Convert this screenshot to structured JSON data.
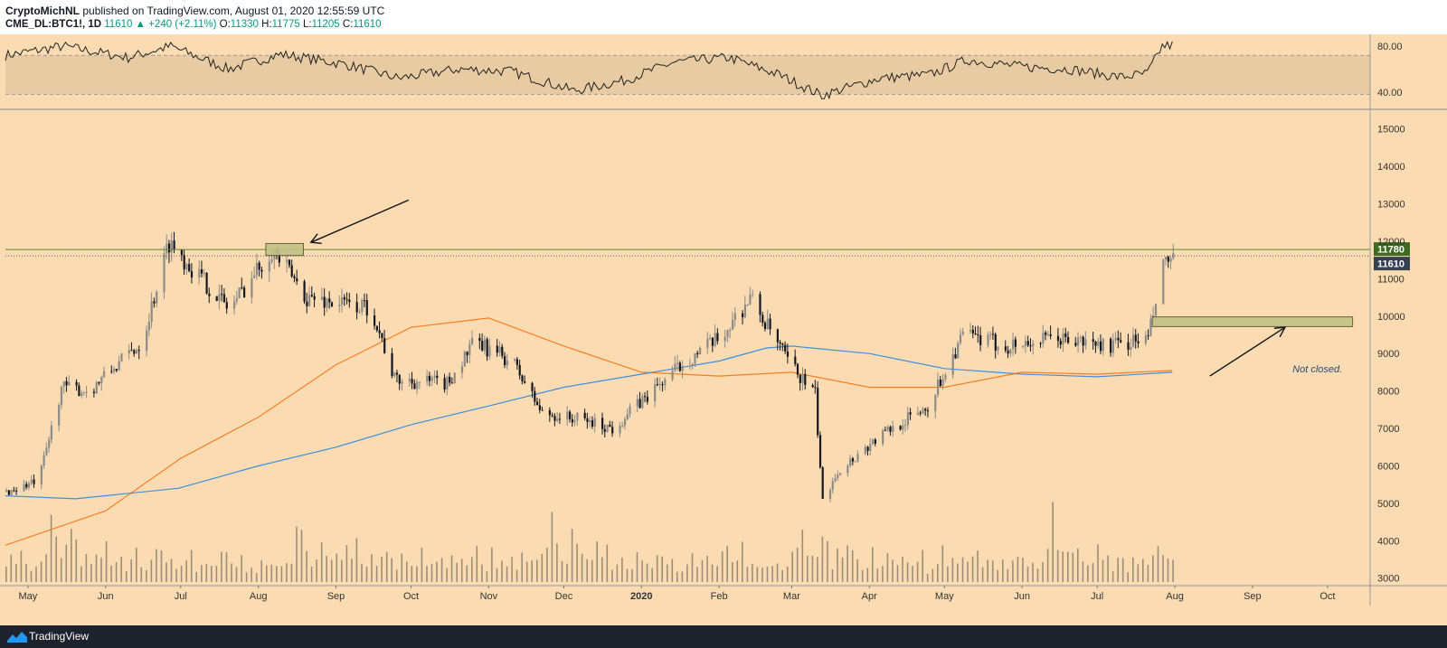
{
  "header": {
    "author": "CryptoMichNL",
    "published": "published on TradingView.com, August 01, 2020 12:55:59 UTC",
    "symbol": "CME_DL:BTC1!, 1D",
    "last": "11610",
    "change_arrow": "▲",
    "change": "+240 (+2.11%)",
    "o_label": "O:",
    "o_value": "11330",
    "h_label": "H:",
    "h_value": "11775",
    "l_label": "L:",
    "l_value": "11205",
    "c_label": "C:",
    "c_value": "11610"
  },
  "footer": {
    "brand": "TradingView",
    "logo_icon": "tradingview-logo-icon"
  },
  "colors": {
    "background": "#fbdcb2",
    "candle": "#131722",
    "ma_orange": "#f57f20",
    "ma_blue": "#3d8fe0",
    "volume": "#8c8070",
    "zone_fill": "#c2c286",
    "badge_green": "#3e6b1f",
    "badge_gray": "#364150"
  },
  "chart_data": [
    {
      "type": "line",
      "panel": "rsi",
      "ylim": [
        28,
        88
      ],
      "y_ticks": [
        "80.00",
        "40.00"
      ],
      "band": [
        38,
        72
      ],
      "x": [
        "2019-04-22",
        "2019-05-15",
        "2019-06-10",
        "2019-06-27",
        "2019-07-20",
        "2019-08-10",
        "2019-09-05",
        "2019-09-26",
        "2019-10-20",
        "2019-11-10",
        "2019-12-05",
        "2019-12-25",
        "2020-01-14",
        "2020-02-05",
        "2020-02-25",
        "2020-03-13",
        "2020-04-05",
        "2020-04-25",
        "2020-05-10",
        "2020-06-01",
        "2020-06-20",
        "2020-07-10",
        "2020-07-21",
        "2020-07-27",
        "2020-07-31"
      ],
      "values": [
        72,
        80,
        70,
        80,
        60,
        73,
        64,
        52,
        60,
        58,
        41,
        50,
        66,
        70,
        55,
        37,
        52,
        55,
        68,
        62,
        60,
        53,
        56,
        80,
        81
      ]
    },
    {
      "type": "candlestick",
      "panel": "price",
      "ylim": [
        2800,
        15500
      ],
      "y_ticks": [
        "15000",
        "14000",
        "13000",
        "12000",
        "11000",
        "10000",
        "9000",
        "8000",
        "7000",
        "6000",
        "5000",
        "4000",
        "3000"
      ],
      "x_ticks": [
        "May",
        "Jun",
        "Jul",
        "Aug",
        "Sep",
        "Oct",
        "Nov",
        "Dec",
        "2020",
        "Feb",
        "Mar",
        "Apr",
        "May",
        "Jun",
        "Jul",
        "Aug",
        "Sep",
        "Oct"
      ],
      "close_path": {
        "x": [
          "2019-04-22",
          "2019-05-05",
          "2019-05-14",
          "2019-05-25",
          "2019-06-15",
          "2019-06-26",
          "2019-07-05",
          "2019-07-20",
          "2019-08-06",
          "2019-08-20",
          "2019-09-15",
          "2019-09-24",
          "2019-10-15",
          "2019-10-26",
          "2019-11-10",
          "2019-11-22",
          "2019-12-10",
          "2019-12-20",
          "2020-01-05",
          "2020-01-18",
          "2020-02-01",
          "2020-02-13",
          "2020-02-28",
          "2020-03-10",
          "2020-03-13",
          "2020-03-18",
          "2020-04-05",
          "2020-04-24",
          "2020-05-08",
          "2020-05-25",
          "2020-06-15",
          "2020-07-05",
          "2020-07-21",
          "2020-07-27",
          "2020-07-31"
        ],
        "values": [
          5300,
          5600,
          8100,
          8000,
          9300,
          12000,
          11300,
          10200,
          11800,
          10500,
          10200,
          8300,
          8200,
          9300,
          8800,
          7400,
          7200,
          7000,
          8000,
          8800,
          9400,
          10500,
          8800,
          7900,
          5000,
          5800,
          6800,
          7600,
          9500,
          9200,
          9400,
          9200,
          9400,
          11300,
          11610
        ]
      },
      "series": [
        {
          "name": "",
          "style": "orange",
          "x": [
            "2019-04-22",
            "2019-06-01",
            "2019-07-01",
            "2019-08-01",
            "2019-09-01",
            "2019-10-01",
            "2019-11-01",
            "2019-12-01",
            "2020-01-01",
            "2020-02-01",
            "2020-03-01",
            "2020-04-01",
            "2020-05-01",
            "2020-06-01",
            "2020-07-01",
            "2020-07-31"
          ],
          "values": [
            3880,
            4800,
            6200,
            7300,
            8700,
            9700,
            9950,
            9200,
            8500,
            8400,
            8500,
            8100,
            8100,
            8500,
            8450,
            8550
          ]
        },
        {
          "name": "",
          "style": "blue",
          "x": [
            "2019-04-22",
            "2019-05-20",
            "2019-06-30",
            "2019-08-01",
            "2019-09-01",
            "2019-10-01",
            "2019-11-01",
            "2019-12-01",
            "2020-01-01",
            "2020-02-01",
            "2020-02-20",
            "2020-03-01",
            "2020-04-01",
            "2020-05-01",
            "2020-06-01",
            "2020-07-01",
            "2020-07-31"
          ],
          "values": [
            5200,
            5120,
            5400,
            6000,
            6500,
            7100,
            7600,
            8100,
            8450,
            8800,
            9150,
            9200,
            9000,
            8600,
            8450,
            8380,
            8500
          ]
        }
      ],
      "levels": [
        {
          "value": 11780,
          "label": "11780",
          "style": "solid-green"
        },
        {
          "value": 11610,
          "label": "11610",
          "style": "dotted-gray"
        }
      ],
      "zones": [
        {
          "x_start": "2019-08-04",
          "x_end": "2019-08-19",
          "y_low": 11620,
          "y_high": 11940
        },
        {
          "x_start": "2020-07-23",
          "x_end": "2020-10-11",
          "y_low": 9720,
          "y_high": 9980
        }
      ],
      "annotations": [
        {
          "type": "arrow",
          "from": [
            "2019-09-30",
            13100
          ],
          "to": [
            "2019-08-22",
            11970
          ]
        },
        {
          "type": "arrow",
          "from": [
            "2020-08-15",
            8400
          ],
          "to": [
            "2020-09-14",
            9700
          ]
        },
        {
          "type": "text",
          "text": "Not closed.",
          "at": [
            "2020-09-17",
            8500
          ]
        }
      ]
    },
    {
      "type": "bar",
      "panel": "volume",
      "series_name": "",
      "values": [
        28,
        45,
        38,
        52,
        30,
        35,
        40,
        55,
        90,
        130,
        75,
        45,
        60,
        85,
        70,
        42,
        55,
        38,
        62,
        48,
        70,
        33,
        45,
        52,
        28,
        40,
        58,
        36,
        30,
        42,
        65,
        48,
        38,
        55,
        25,
        32,
        40,
        62,
        28,
        45,
        52,
        38,
        30,
        48,
        55,
        42,
        35,
        60,
        28,
        40
      ]
    }
  ]
}
